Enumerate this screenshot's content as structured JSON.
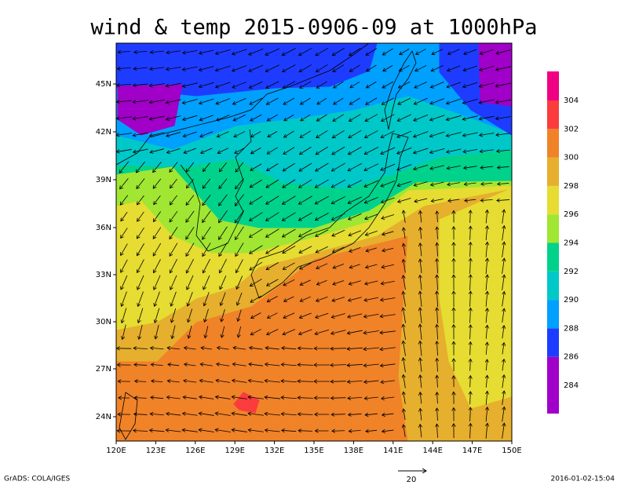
{
  "title": "wind & temp 2015-0906-09 at 1000hPa",
  "lon_ticks": [
    "120E",
    "123E",
    "126E",
    "129E",
    "132E",
    "135E",
    "138E",
    "141E",
    "144E",
    "147E",
    "150E"
  ],
  "lat_ticks": [
    "24N",
    "27N",
    "30N",
    "33N",
    "36N",
    "39N",
    "42N",
    "45N"
  ],
  "colorbar": {
    "levels": [
      284,
      286,
      288,
      290,
      292,
      294,
      296,
      298,
      300,
      302,
      304
    ],
    "colors": [
      "#a000c8",
      "#a000c8",
      "#1e3cff",
      "#00a0ff",
      "#00c8c8",
      "#00d28c",
      "#a0e632",
      "#e6dc32",
      "#e6af2d",
      "#f08228",
      "#fa3c3c",
      "#f00082"
    ]
  },
  "vector_scale": "20",
  "footer": {
    "left": "GrADS: COLA/IGES",
    "right": "2016-01-02-15:04"
  }
}
